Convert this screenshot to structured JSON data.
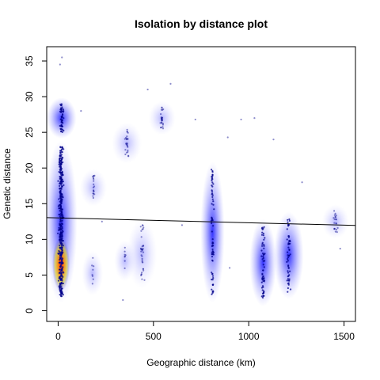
{
  "chart_data": {
    "type": "scatter",
    "title": "Isolation by distance plot",
    "xlabel": "Geographic distance (km)",
    "ylabel": "Genetic distance",
    "xlim": [
      -60,
      1560
    ],
    "ylim": [
      -1.5,
      37
    ],
    "xticks": [
      0,
      500,
      1000,
      1500
    ],
    "yticks": [
      0,
      5,
      10,
      15,
      20,
      25,
      30,
      35
    ],
    "grid": false,
    "legend": "none",
    "regression_line": {
      "x": [
        -60,
        1560
      ],
      "y": [
        13.05,
        11.95
      ]
    },
    "point_clusters": [
      {
        "x": 15,
        "y_min": 2,
        "y_max": 23,
        "count": 420,
        "spread_x": 14
      },
      {
        "x": 18,
        "y_min": 25,
        "y_max": 29,
        "count": 50,
        "spread_x": 12
      },
      {
        "x": 185,
        "y_min": 15.5,
        "y_max": 19,
        "count": 18,
        "spread_x": 10
      },
      {
        "x": 180,
        "y_min": 3,
        "y_max": 7.5,
        "count": 8,
        "spread_x": 6
      },
      {
        "x": 360,
        "y_min": 21.5,
        "y_max": 25.5,
        "count": 25,
        "spread_x": 12
      },
      {
        "x": 350,
        "y_min": 5,
        "y_max": 9,
        "count": 8,
        "spread_x": 6
      },
      {
        "x": 440,
        "y_min": 4,
        "y_max": 12,
        "count": 35,
        "spread_x": 12
      },
      {
        "x": 545,
        "y_min": 25.5,
        "y_max": 28.5,
        "count": 25,
        "spread_x": 10
      },
      {
        "x": 810,
        "y_min": 2,
        "y_max": 20,
        "count": 70,
        "spread_x": 8
      },
      {
        "x": 1075,
        "y_min": 1.5,
        "y_max": 12,
        "count": 60,
        "spread_x": 10
      },
      {
        "x": 1210,
        "y_min": 2.5,
        "y_max": 13,
        "count": 55,
        "spread_x": 12
      },
      {
        "x": 1455,
        "y_min": 11,
        "y_max": 14,
        "count": 20,
        "spread_x": 10
      }
    ],
    "density_peak": {
      "x": 15,
      "y": 6.5
    },
    "colors": {
      "points": "#00008b",
      "density_low": "#c9c9ff",
      "density_mid": "#0000ff",
      "density_high": "#ffd000",
      "density_peak": "#ff0000",
      "regression_line": "#000000"
    }
  }
}
